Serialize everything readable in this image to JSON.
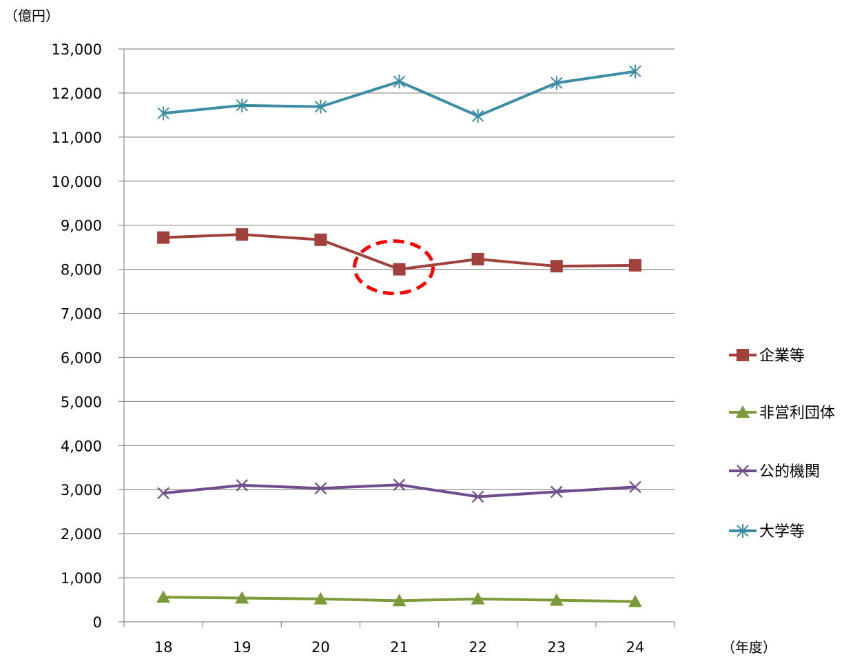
{
  "chart_data": {
    "type": "line",
    "y_unit_label": "（億円）",
    "x_unit_label": "（年度）",
    "categories": [
      "18",
      "19",
      "20",
      "21",
      "22",
      "23",
      "24"
    ],
    "ylim": [
      0,
      13000
    ],
    "yticks": [
      0,
      1000,
      2000,
      3000,
      4000,
      5000,
      6000,
      7000,
      8000,
      9000,
      10000,
      11000,
      12000,
      13000
    ],
    "ytick_labels": [
      "0",
      "1,000",
      "2,000",
      "3,000",
      "4,000",
      "5,000",
      "6,000",
      "7,000",
      "8,000",
      "9,000",
      "10,000",
      "11,000",
      "12,000",
      "13,000"
    ],
    "grid": true,
    "legend_position": "right",
    "series": [
      {
        "name": "企業等",
        "values": [
          8720,
          8790,
          8670,
          8000,
          8230,
          8070,
          8090
        ],
        "color": "#A0413C",
        "marker": "square"
      },
      {
        "name": "非営利団体",
        "values": [
          560,
          540,
          520,
          480,
          520,
          490,
          460
        ],
        "color": "#7C9A3A",
        "marker": "triangle"
      },
      {
        "name": "公的機関",
        "values": [
          2920,
          3100,
          3030,
          3110,
          2840,
          2950,
          3060
        ],
        "color": "#6E4C8E",
        "marker": "x"
      },
      {
        "name": "大学等",
        "values": [
          11540,
          11720,
          11690,
          12260,
          11480,
          12230,
          12490
        ],
        "color": "#3A8DA4",
        "marker": "star"
      }
    ],
    "highlight": {
      "series": "企業等",
      "category": "21",
      "color": "#FF0000",
      "style": "dashed-ellipse"
    }
  }
}
